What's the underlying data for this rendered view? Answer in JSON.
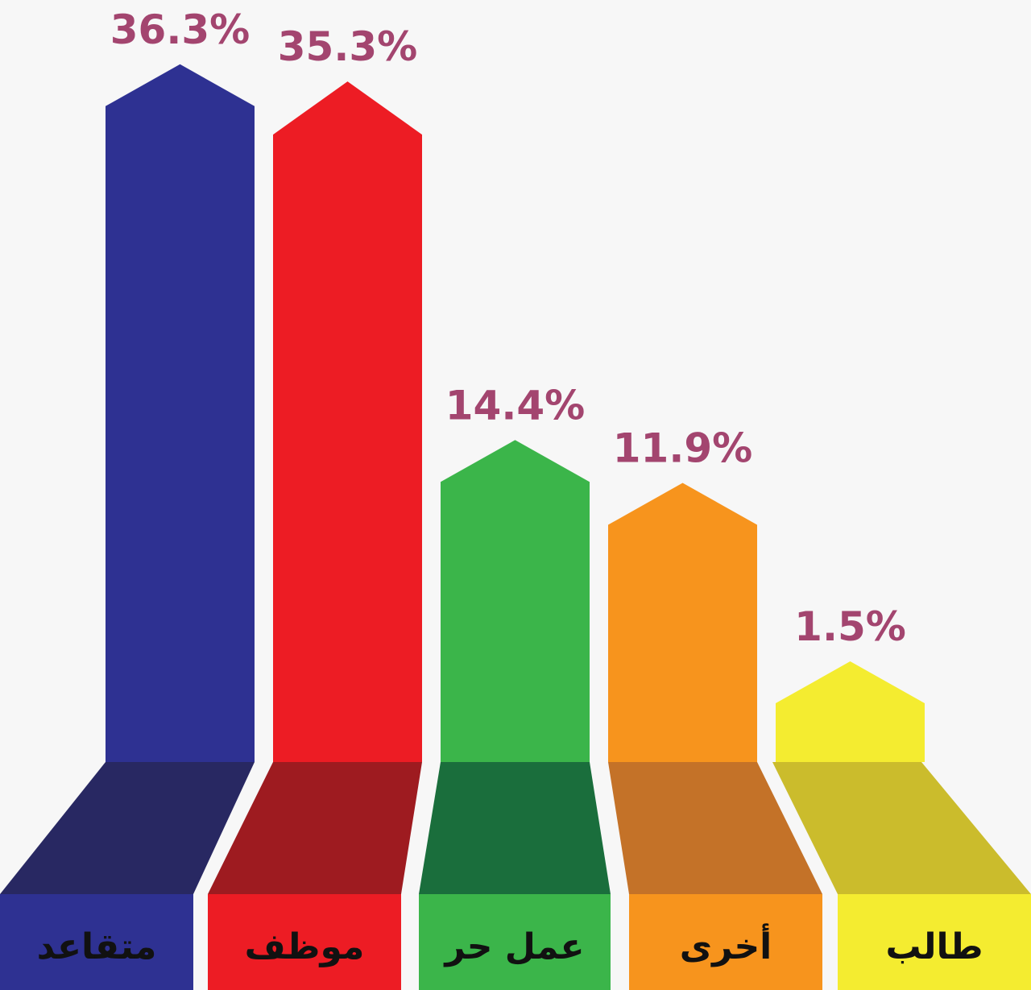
{
  "chart_data": {
    "type": "bar",
    "categories": [
      "متقاعد",
      "موظف",
      "عمل حر",
      "أخرى",
      "طالب"
    ],
    "values": [
      36.3,
      35.3,
      14.4,
      11.9,
      1.5
    ],
    "value_labels": [
      "36.3%",
      "35.3%",
      "14.4%",
      "11.9%",
      "1.5%"
    ],
    "unit": "%",
    "colors": [
      "#2e3192",
      "#ed1c24",
      "#3bb54a",
      "#f7941d",
      "#f4ec30"
    ],
    "base_colors": [
      "#282862",
      "#9e1b20",
      "#1a6e3c",
      "#c47228",
      "#cbbc2c"
    ],
    "label_color": "#a3456f",
    "grid": false,
    "legend": "none"
  }
}
